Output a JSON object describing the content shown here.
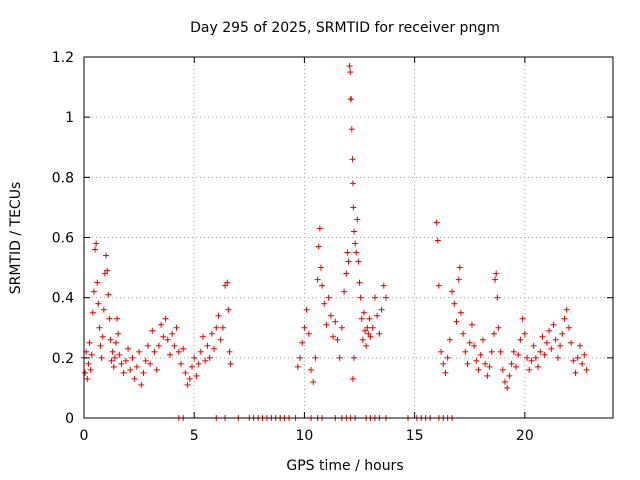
{
  "chart_data": {
    "type": "scatter",
    "title": "Day 295 of 2025, SRMTID for receiver pngm",
    "xlabel": "GPS time / hours",
    "ylabel": "SRMTID / TECUs",
    "xlim": [
      0,
      24
    ],
    "ylim": [
      0,
      1.2
    ],
    "xticks": [
      0,
      5,
      10,
      15,
      20
    ],
    "yticks": [
      0,
      0.2,
      0.4,
      0.6,
      0.8,
      1,
      1.2
    ],
    "xtick_labels": [
      "0",
      "5",
      "10",
      "15",
      "20"
    ],
    "ytick_labels": [
      "0",
      "0.2",
      "0.4",
      "0.6",
      "0.8",
      "1",
      "1.2"
    ],
    "grid": true,
    "marker": "+",
    "color": "#e00000",
    "series": [
      {
        "name": "SRMTID",
        "points": [
          [
            0.0,
            0.2
          ],
          [
            0.05,
            0.15
          ],
          [
            0.1,
            0.22
          ],
          [
            0.15,
            0.13
          ],
          [
            0.2,
            0.18
          ],
          [
            0.25,
            0.25
          ],
          [
            0.3,
            0.16
          ],
          [
            0.35,
            0.21
          ],
          [
            0.4,
            0.35
          ],
          [
            0.45,
            0.42
          ],
          [
            0.5,
            0.56
          ],
          [
            0.55,
            0.58
          ],
          [
            0.6,
            0.45
          ],
          [
            0.65,
            0.38
          ],
          [
            0.7,
            0.3
          ],
          [
            0.75,
            0.24
          ],
          [
            0.8,
            0.2
          ],
          [
            0.85,
            0.27
          ],
          [
            0.9,
            0.36
          ],
          [
            0.95,
            0.48
          ],
          [
            1.0,
            0.54
          ],
          [
            1.05,
            0.49
          ],
          [
            1.1,
            0.41
          ],
          [
            1.15,
            0.33
          ],
          [
            1.2,
            0.26
          ],
          [
            1.25,
            0.19
          ],
          [
            1.3,
            0.22
          ],
          [
            1.35,
            0.17
          ],
          [
            1.4,
            0.2
          ],
          [
            1.45,
            0.25
          ],
          [
            1.5,
            0.33
          ],
          [
            1.55,
            0.28
          ],
          [
            1.6,
            0.21
          ],
          [
            1.7,
            0.18
          ],
          [
            1.8,
            0.15
          ],
          [
            1.9,
            0.19
          ],
          [
            2.0,
            0.23
          ],
          [
            2.1,
            0.16
          ],
          [
            2.2,
            0.2
          ],
          [
            2.3,
            0.13
          ],
          [
            2.4,
            0.17
          ],
          [
            2.5,
            0.22
          ],
          [
            2.6,
            0.11
          ],
          [
            2.7,
            0.15
          ],
          [
            2.8,
            0.19
          ],
          [
            2.9,
            0.24
          ],
          [
            3.0,
            0.18
          ],
          [
            3.1,
            0.29
          ],
          [
            3.2,
            0.22
          ],
          [
            3.3,
            0.16
          ],
          [
            3.4,
            0.24
          ],
          [
            3.5,
            0.31
          ],
          [
            3.6,
            0.27
          ],
          [
            3.7,
            0.33
          ],
          [
            3.8,
            0.26
          ],
          [
            3.9,
            0.21
          ],
          [
            4.0,
            0.28
          ],
          [
            4.1,
            0.24
          ],
          [
            4.2,
            0.3
          ],
          [
            4.3,
            0.22
          ],
          [
            4.4,
            0.18
          ],
          [
            4.5,
            0.23
          ],
          [
            4.6,
            0.15
          ],
          [
            4.7,
            0.11
          ],
          [
            4.8,
            0.13
          ],
          [
            4.9,
            0.17
          ],
          [
            5.0,
            0.2
          ],
          [
            5.1,
            0.14
          ],
          [
            5.2,
            0.18
          ],
          [
            5.3,
            0.22
          ],
          [
            5.4,
            0.27
          ],
          [
            5.5,
            0.19
          ],
          [
            5.6,
            0.24
          ],
          [
            5.7,
            0.2
          ],
          [
            5.8,
            0.28
          ],
          [
            5.9,
            0.23
          ],
          [
            6.0,
            0.3
          ],
          [
            6.1,
            0.34
          ],
          [
            6.2,
            0.26
          ],
          [
            6.3,
            0.3
          ],
          [
            6.4,
            0.44
          ],
          [
            6.5,
            0.45
          ],
          [
            6.55,
            0.36
          ],
          [
            6.6,
            0.22
          ],
          [
            6.65,
            0.18
          ],
          [
            9.7,
            0.17
          ],
          [
            9.8,
            0.2
          ],
          [
            9.9,
            0.25
          ],
          [
            10.0,
            0.3
          ],
          [
            10.1,
            0.36
          ],
          [
            10.2,
            0.28
          ],
          [
            10.3,
            0.16
          ],
          [
            10.4,
            0.12
          ],
          [
            10.5,
            0.2
          ],
          [
            10.6,
            0.46
          ],
          [
            10.65,
            0.57
          ],
          [
            10.7,
            0.63
          ],
          [
            10.75,
            0.5
          ],
          [
            10.8,
            0.44
          ],
          [
            10.9,
            0.38
          ],
          [
            11.0,
            0.31
          ],
          [
            11.1,
            0.4
          ],
          [
            11.2,
            0.34
          ],
          [
            11.3,
            0.27
          ],
          [
            11.4,
            0.32
          ],
          [
            11.5,
            0.26
          ],
          [
            11.6,
            0.2
          ],
          [
            11.7,
            0.3
          ],
          [
            11.8,
            0.42
          ],
          [
            11.9,
            0.48
          ],
          [
            11.95,
            0.55
          ],
          [
            12.0,
            0.52
          ],
          [
            12.05,
            1.17
          ],
          [
            12.08,
            1.15
          ],
          [
            12.1,
            1.06
          ],
          [
            12.12,
            1.06
          ],
          [
            12.15,
            0.96
          ],
          [
            12.18,
            0.86
          ],
          [
            12.2,
            0.78
          ],
          [
            12.22,
            0.7
          ],
          [
            12.25,
            0.62
          ],
          [
            12.3,
            0.58
          ],
          [
            12.35,
            0.55
          ],
          [
            12.4,
            0.66
          ],
          [
            12.45,
            0.52
          ],
          [
            12.5,
            0.45
          ],
          [
            12.55,
            0.4
          ],
          [
            12.6,
            0.33
          ],
          [
            12.65,
            0.26
          ],
          [
            12.7,
            0.35
          ],
          [
            12.75,
            0.29
          ],
          [
            12.8,
            0.24
          ],
          [
            12.85,
            0.3
          ],
          [
            12.9,
            0.28
          ],
          [
            12.95,
            0.33
          ],
          [
            13.0,
            0.27
          ],
          [
            13.1,
            0.3
          ],
          [
            13.2,
            0.4
          ],
          [
            13.3,
            0.34
          ],
          [
            13.4,
            0.28
          ],
          [
            13.5,
            0.36
          ],
          [
            13.6,
            0.44
          ],
          [
            13.7,
            0.4
          ],
          [
            12.2,
            0.13
          ],
          [
            12.25,
            0.2
          ],
          [
            16.0,
            0.65
          ],
          [
            16.05,
            0.59
          ],
          [
            16.1,
            0.44
          ],
          [
            16.2,
            0.22
          ],
          [
            16.3,
            0.18
          ],
          [
            16.4,
            0.15
          ],
          [
            16.5,
            0.2
          ],
          [
            16.6,
            0.26
          ],
          [
            16.7,
            0.42
          ],
          [
            16.8,
            0.38
          ],
          [
            16.9,
            0.32
          ],
          [
            17.0,
            0.46
          ],
          [
            17.05,
            0.5
          ],
          [
            17.1,
            0.35
          ],
          [
            17.2,
            0.28
          ],
          [
            17.3,
            0.22
          ],
          [
            17.4,
            0.18
          ],
          [
            17.5,
            0.25
          ],
          [
            17.6,
            0.31
          ],
          [
            17.7,
            0.24
          ],
          [
            17.8,
            0.19
          ],
          [
            17.9,
            0.16
          ],
          [
            18.0,
            0.21
          ],
          [
            18.1,
            0.26
          ],
          [
            18.2,
            0.18
          ],
          [
            18.3,
            0.14
          ],
          [
            18.4,
            0.17
          ],
          [
            18.5,
            0.22
          ],
          [
            18.6,
            0.28
          ],
          [
            18.65,
            0.46
          ],
          [
            18.7,
            0.48
          ],
          [
            18.75,
            0.4
          ],
          [
            18.8,
            0.3
          ],
          [
            18.9,
            0.22
          ],
          [
            19.0,
            0.16
          ],
          [
            19.1,
            0.12
          ],
          [
            19.2,
            0.1
          ],
          [
            19.3,
            0.14
          ],
          [
            19.4,
            0.18
          ],
          [
            19.5,
            0.22
          ],
          [
            19.6,
            0.17
          ],
          [
            19.7,
            0.21
          ],
          [
            19.8,
            0.26
          ],
          [
            19.9,
            0.33
          ],
          [
            20.0,
            0.28
          ],
          [
            20.1,
            0.2
          ],
          [
            20.2,
            0.16
          ],
          [
            20.3,
            0.19
          ],
          [
            20.4,
            0.24
          ],
          [
            20.5,
            0.2
          ],
          [
            20.6,
            0.17
          ],
          [
            20.7,
            0.22
          ],
          [
            20.8,
            0.27
          ],
          [
            20.9,
            0.21
          ],
          [
            21.0,
            0.25
          ],
          [
            21.1,
            0.29
          ],
          [
            21.2,
            0.23
          ],
          [
            21.3,
            0.31
          ],
          [
            21.4,
            0.26
          ],
          [
            21.5,
            0.2
          ],
          [
            21.6,
            0.24
          ],
          [
            21.7,
            0.28
          ],
          [
            21.8,
            0.33
          ],
          [
            21.9,
            0.36
          ],
          [
            22.0,
            0.3
          ],
          [
            22.1,
            0.25
          ],
          [
            22.2,
            0.19
          ],
          [
            22.3,
            0.15
          ],
          [
            22.4,
            0.2
          ],
          [
            22.5,
            0.24
          ],
          [
            22.6,
            0.18
          ],
          [
            22.7,
            0.21
          ],
          [
            22.8,
            0.16
          ],
          [
            4.3,
            0.0
          ],
          [
            4.5,
            0.0
          ],
          [
            6.0,
            0.0
          ],
          [
            6.4,
            0.0
          ],
          [
            7.0,
            0.0
          ],
          [
            7.5,
            0.0
          ],
          [
            7.7,
            0.0
          ],
          [
            7.9,
            0.0
          ],
          [
            8.1,
            0.0
          ],
          [
            8.3,
            0.0
          ],
          [
            8.5,
            0.0
          ],
          [
            8.7,
            0.0
          ],
          [
            8.9,
            0.0
          ],
          [
            9.1,
            0.0
          ],
          [
            9.3,
            0.0
          ],
          [
            9.6,
            0.0
          ],
          [
            10.3,
            0.0
          ],
          [
            10.6,
            0.0
          ],
          [
            10.8,
            0.0
          ],
          [
            11.4,
            0.0
          ],
          [
            11.7,
            0.0
          ],
          [
            11.9,
            0.0
          ],
          [
            12.1,
            0.0
          ],
          [
            12.3,
            0.0
          ],
          [
            12.8,
            0.0
          ],
          [
            13.0,
            0.0
          ],
          [
            13.2,
            0.0
          ],
          [
            13.4,
            0.0
          ],
          [
            13.7,
            0.0
          ],
          [
            14.7,
            0.0
          ],
          [
            15.1,
            0.0
          ],
          [
            15.3,
            0.0
          ],
          [
            15.5,
            0.0
          ],
          [
            15.7,
            0.0
          ],
          [
            16.1,
            0.0
          ],
          [
            16.3,
            0.0
          ],
          [
            16.5,
            0.0
          ],
          [
            16.7,
            0.0
          ]
        ]
      }
    ]
  }
}
